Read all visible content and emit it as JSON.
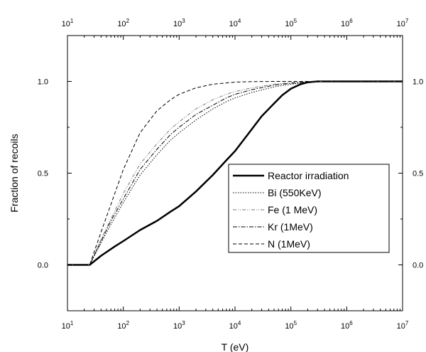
{
  "chart_data": {
    "type": "line",
    "title": "",
    "xlabel": "T (eV)",
    "ylabel": "Fraction of recoils",
    "xscale": "log",
    "xlim": [
      10,
      10000000
    ],
    "ylim": [
      -0.25,
      1.25
    ],
    "x_ticks": [
      {
        "base": "10",
        "exp": "1"
      },
      {
        "base": "10",
        "exp": "2"
      },
      {
        "base": "10",
        "exp": "3"
      },
      {
        "base": "10",
        "exp": "4"
      },
      {
        "base": "10",
        "exp": "5"
      },
      {
        "base": "10",
        "exp": "6"
      },
      {
        "base": "10",
        "exp": "7"
      }
    ],
    "y_ticks": [
      "0.0",
      "0.5",
      "1.0"
    ],
    "y_ticks_right": [
      "0.0",
      "0.5",
      "1.0"
    ],
    "grid": false,
    "legend_position": "right",
    "series": [
      {
        "name": "Reactor irradiation",
        "style": "solid-thick",
        "color": "#000000",
        "x": [
          10,
          25,
          40,
          70,
          100,
          200,
          400,
          700,
          1000,
          2000,
          4000,
          7000,
          10000,
          20000,
          30000,
          50000,
          70000,
          100000,
          150000,
          200000,
          300000,
          1000000,
          10000000
        ],
        "y": [
          0,
          0,
          0.05,
          0.1,
          0.13,
          0.19,
          0.24,
          0.29,
          0.32,
          0.4,
          0.49,
          0.57,
          0.62,
          0.74,
          0.81,
          0.88,
          0.925,
          0.96,
          0.985,
          0.995,
          1.0,
          1.0,
          1.0
        ]
      },
      {
        "name": "Bi (550KeV)",
        "style": "dotted",
        "color": "#000000",
        "x": [
          10,
          25,
          40,
          60,
          100,
          200,
          400,
          700,
          1000,
          2000,
          4000,
          7000,
          10000,
          20000,
          50000,
          100000,
          200000,
          500000,
          10000000
        ],
        "y": [
          0,
          0,
          0.12,
          0.22,
          0.34,
          0.49,
          0.6,
          0.68,
          0.72,
          0.79,
          0.85,
          0.89,
          0.91,
          0.94,
          0.97,
          0.985,
          0.995,
          1.0,
          1.0
        ]
      },
      {
        "name": "Fe (1 MeV)",
        "style": "dash-dot-dot",
        "color": "#7a7a7a",
        "x": [
          10,
          25,
          40,
          60,
          100,
          200,
          400,
          700,
          1000,
          2000,
          4000,
          7000,
          10000,
          20000,
          50000,
          100000,
          200000,
          500000,
          10000000
        ],
        "y": [
          0,
          0,
          0.14,
          0.25,
          0.39,
          0.55,
          0.66,
          0.74,
          0.78,
          0.85,
          0.9,
          0.93,
          0.945,
          0.965,
          0.985,
          0.993,
          0.998,
          1.0,
          1.0
        ]
      },
      {
        "name": "Kr (1MeV)",
        "style": "dash-dot",
        "color": "#000000",
        "x": [
          10,
          25,
          40,
          60,
          100,
          200,
          400,
          700,
          1000,
          2000,
          4000,
          7000,
          10000,
          20000,
          50000,
          100000,
          200000,
          500000,
          10000000
        ],
        "y": [
          0,
          0,
          0.13,
          0.24,
          0.36,
          0.52,
          0.63,
          0.71,
          0.75,
          0.82,
          0.87,
          0.91,
          0.93,
          0.955,
          0.98,
          0.99,
          0.997,
          1.0,
          1.0
        ]
      },
      {
        "name": "N (1MeV)",
        "style": "dashed",
        "color": "#000000",
        "x": [
          10,
          25,
          40,
          60,
          100,
          200,
          400,
          700,
          1000,
          2000,
          4000,
          7000,
          10000,
          20000,
          50000,
          100000,
          200000,
          10000000
        ],
        "y": [
          0,
          0,
          0.18,
          0.33,
          0.52,
          0.72,
          0.84,
          0.9,
          0.93,
          0.965,
          0.985,
          0.992,
          0.996,
          0.999,
          1.0,
          1.0,
          1.0,
          1.0
        ]
      }
    ]
  }
}
